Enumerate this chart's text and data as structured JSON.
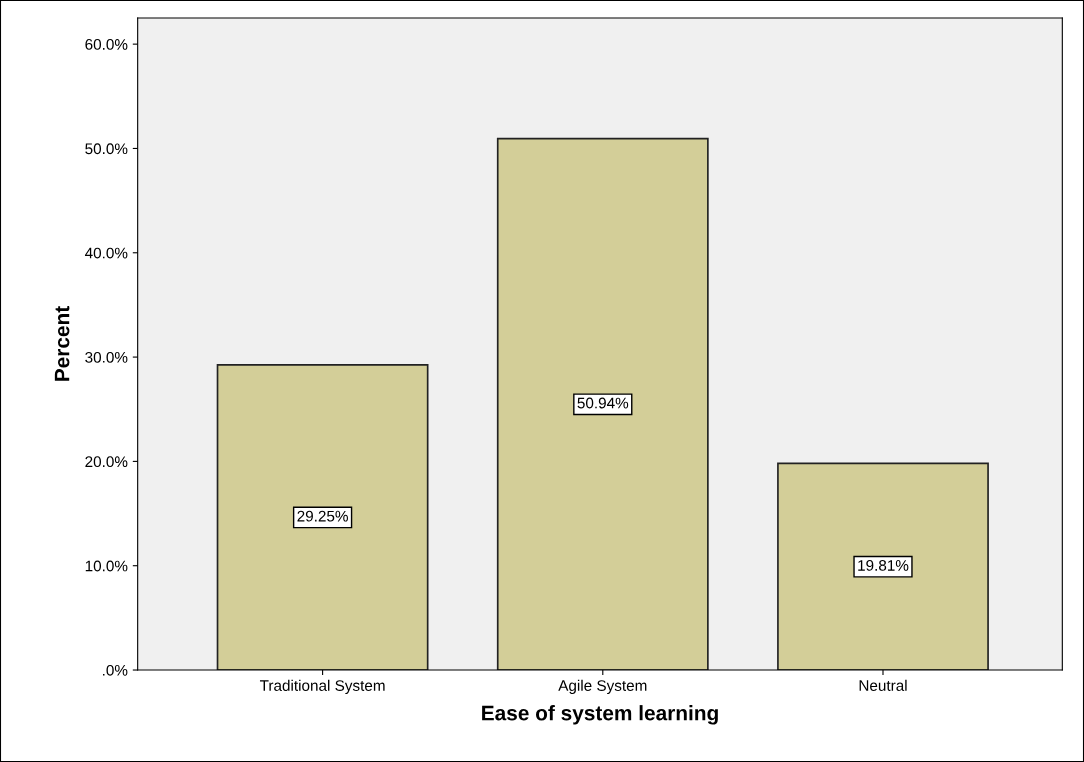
{
  "chart_data": {
    "type": "bar",
    "xlabel": "Ease of system learning",
    "ylabel": "Percent",
    "categories": [
      "Traditional System",
      "Agile System",
      "Neutral"
    ],
    "values": [
      29.25,
      50.94,
      19.81
    ],
    "value_labels": [
      "29.25%",
      "50.94%",
      "19.81%"
    ],
    "color": "#d3ce98",
    "ylim": [
      0,
      62.5
    ],
    "yticks": [
      {
        "value": 0,
        "label": ".0%"
      },
      {
        "value": 10,
        "label": "10.0%"
      },
      {
        "value": 20,
        "label": "20.0%"
      },
      {
        "value": 30,
        "label": "30.0%"
      },
      {
        "value": 40,
        "label": "40.0%"
      },
      {
        "value": 50,
        "label": "50.0%"
      },
      {
        "value": 60,
        "label": "60.0%"
      }
    ],
    "grid": false,
    "legend": false
  }
}
